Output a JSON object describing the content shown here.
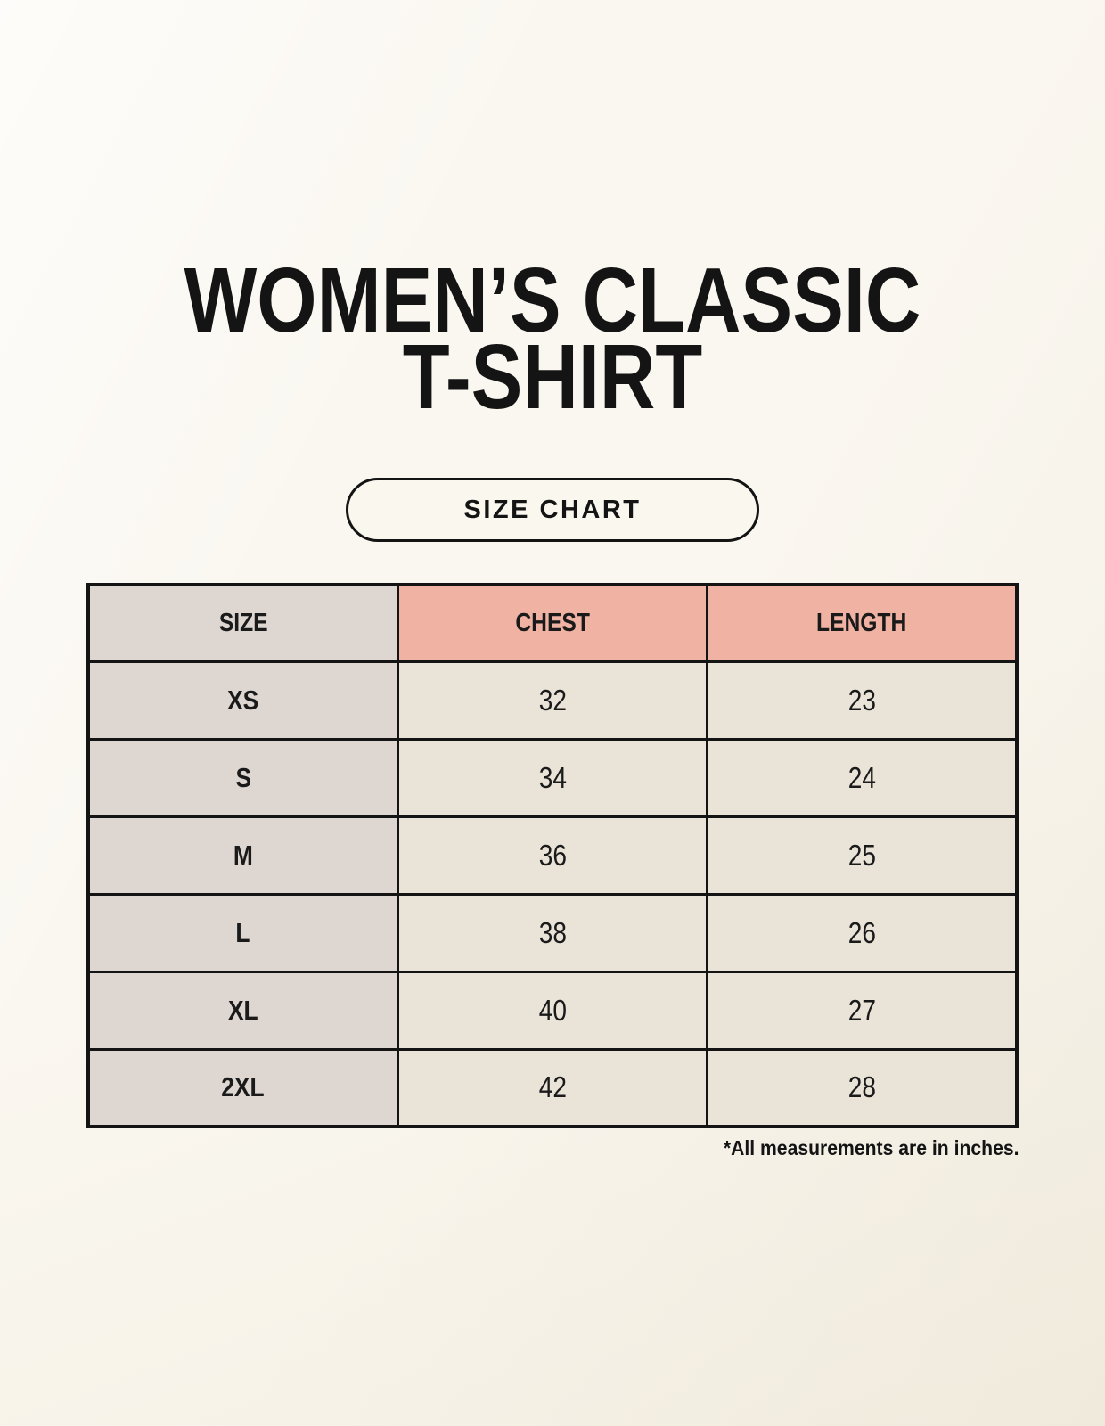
{
  "page": {
    "title_line1": "WOMEN’S CLASSIC",
    "title_line2": "T-SHIRT",
    "button_label": "SIZE CHART",
    "footnote": "*All measurements are in inches."
  },
  "colors": {
    "page_background": "#f8f4ea",
    "text": "#141414",
    "table_border": "#141414",
    "size_column_background": "#ddd6d1",
    "header_accent_background": "#f0b3a3",
    "data_cell_background": "#eae3d8"
  },
  "chart_data": {
    "type": "table",
    "title": "WOMEN’S CLASSIC T-SHIRT",
    "subtitle": "SIZE CHART",
    "columns": [
      "SIZE",
      "CHEST",
      "LENGTH"
    ],
    "rows": [
      [
        "XS",
        "32",
        "23"
      ],
      [
        "S",
        "34",
        "24"
      ],
      [
        "M",
        "36",
        "25"
      ],
      [
        "L",
        "38",
        "26"
      ],
      [
        "XL",
        "40",
        "27"
      ],
      [
        "2XL",
        "42",
        "28"
      ]
    ],
    "units": "inches",
    "note": "*All measurements are in inches."
  }
}
